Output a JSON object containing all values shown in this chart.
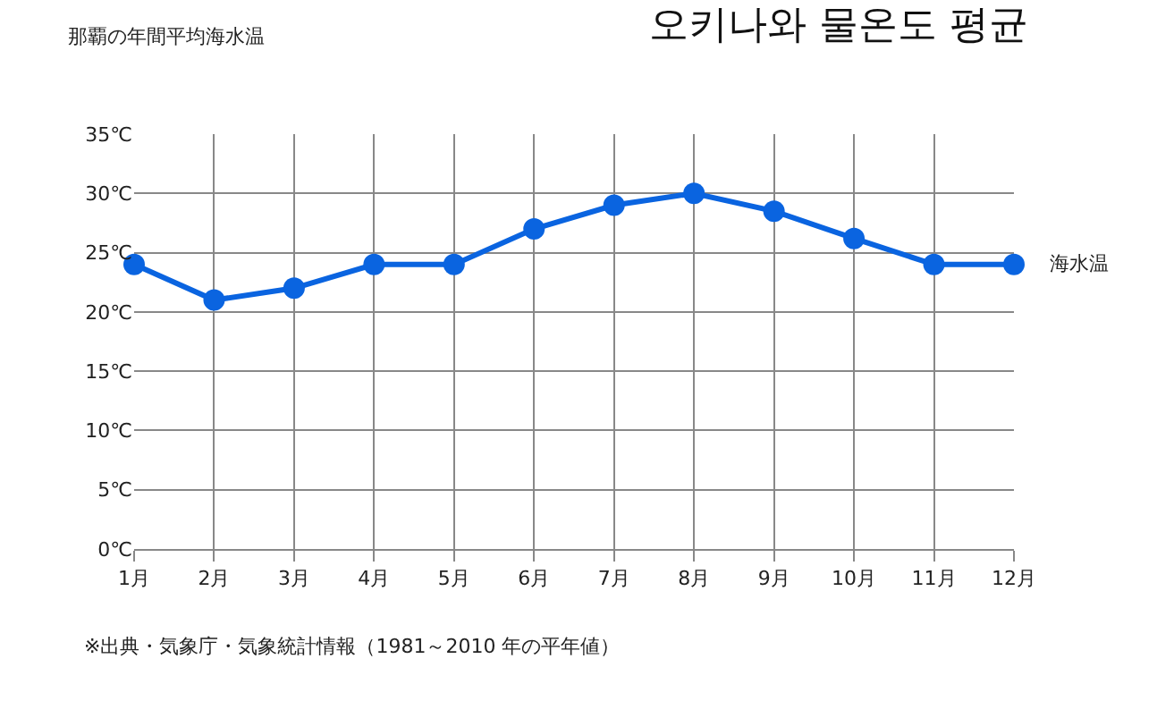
{
  "chart_data": {
    "type": "line",
    "title": "오키나와 물온도 평균",
    "subtitle": "那覇の年間平均海水温",
    "categories": [
      "1月",
      "2月",
      "3月",
      "4月",
      "5月",
      "6月",
      "7月",
      "8月",
      "9月",
      "10月",
      "11月",
      "12月"
    ],
    "series": [
      {
        "name": "海水温",
        "color": "#0a64e0",
        "values": [
          24,
          21,
          22,
          24,
          24,
          27,
          29,
          30,
          28.5,
          26.2,
          24,
          24
        ]
      }
    ],
    "ylim": [
      0,
      35
    ],
    "yticks": [
      {
        "value": 0,
        "label": "0℃"
      },
      {
        "value": 5,
        "label": "5℃"
      },
      {
        "value": 10,
        "label": "10℃"
      },
      {
        "value": 15,
        "label": "15℃"
      },
      {
        "value": 20,
        "label": "20℃"
      },
      {
        "value": 25,
        "label": "25℃"
      },
      {
        "value": 30,
        "label": "30℃"
      },
      {
        "value": 35,
        "label": "35℃"
      }
    ],
    "grid": true,
    "legend": false,
    "marker": "circle",
    "line_style": "solid",
    "annotations": [
      "※出典・気象庁・気象統計情報（1981～2010 年の平年値）"
    ]
  }
}
